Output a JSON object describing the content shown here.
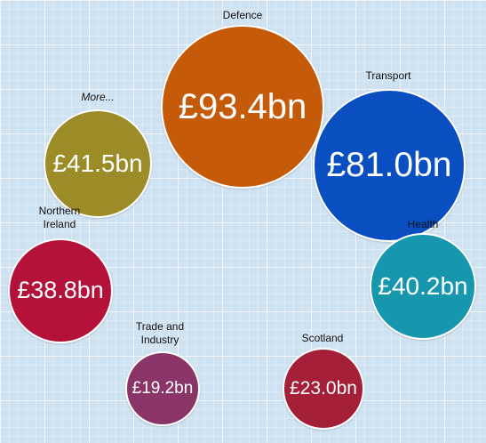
{
  "chart_data": {
    "type": "bubble",
    "unit": "£bn",
    "bubbles": [
      {
        "category": "Defence",
        "value": 93.4,
        "display": "£93.4bn",
        "color": "#c55a08"
      },
      {
        "category": "Transport",
        "value": 81.0,
        "display": "£81.0bn",
        "color": "#0a4fc2"
      },
      {
        "category": "More...",
        "value": 41.5,
        "display": "£41.5bn",
        "color": "#9c8c28"
      },
      {
        "category": "Northern Ireland",
        "value": 38.8,
        "display": "£38.8bn",
        "color": "#b5123a"
      },
      {
        "category": "Health",
        "value": 40.2,
        "display": "£40.2bn",
        "color": "#1697ad"
      },
      {
        "category": "Trade and Industry",
        "value": 19.2,
        "display": "£19.2bn",
        "color": "#8a3467"
      },
      {
        "category": "Scotland",
        "value": 23.0,
        "display": "£23.0bn",
        "color": "#a51f38"
      }
    ]
  }
}
